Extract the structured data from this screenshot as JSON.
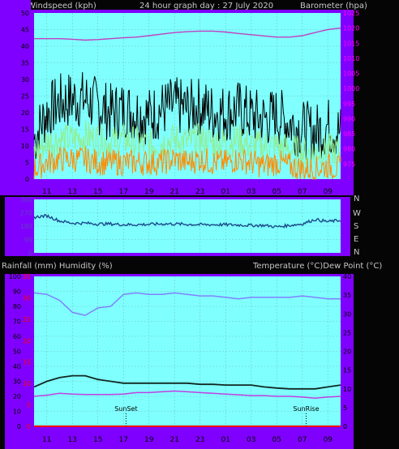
{
  "header": {
    "left_label": "Windspeed (kph)",
    "center_label": "24 hour graph day : 27 July 2020",
    "right_label": "Barometer (hpa)"
  },
  "middle": {
    "compass_labels": [
      "N",
      "W",
      "S",
      "E",
      "N"
    ]
  },
  "lower_header": {
    "left_label": "Rainfall (mm)  Humidity (%)",
    "right_label": "Temperature (°C)Dew Point (°C)"
  },
  "colors": {
    "plot_bg": "#80ffff",
    "axis_bg": "#8000ff",
    "wind_gust": "#000000",
    "wind_avg": "#90ee90",
    "wind_low": "#ff8c00",
    "barometer": "#c040c0",
    "direction": "#1a4a8a",
    "humidity": "#8080ff",
    "temperature": "#102820",
    "dewpoint": "#c040e0",
    "rain": "#ff0000"
  },
  "x_ticks": [
    "11",
    "13",
    "15",
    "17",
    "19",
    "21",
    "23",
    "01",
    "03",
    "05",
    "07",
    "09"
  ],
  "chart_data": [
    {
      "type": "line",
      "title": "24 hour graph day : 27 July 2020",
      "ylabel": "Windspeed (kph)",
      "ylabel_right": "Barometer (hpa)",
      "ylim": [
        0,
        50
      ],
      "ylim_right": [
        970,
        1025
      ],
      "y_ticks": [
        "0",
        "5",
        "10",
        "15",
        "20",
        "25",
        "30",
        "35",
        "40",
        "45",
        "50"
      ],
      "y_ticks_right": [
        "975",
        "980",
        "985",
        "990",
        "995",
        "1000",
        "1005",
        "1010",
        "1015",
        "1020",
        "1025"
      ],
      "x_hours": [
        10,
        11,
        12,
        13,
        14,
        15,
        16,
        17,
        18,
        19,
        20,
        21,
        22,
        23,
        24,
        25,
        26,
        27,
        28,
        29,
        30,
        31,
        32,
        33,
        34
      ],
      "series": [
        {
          "name": "gust",
          "axis": "left",
          "values": [
            12,
            20,
            23,
            24,
            24,
            22,
            20,
            21,
            20,
            19,
            21,
            22,
            21,
            22,
            20,
            20,
            21,
            19,
            18,
            19,
            17,
            15,
            14,
            16,
            14
          ]
        },
        {
          "name": "average",
          "axis": "left",
          "values": [
            8,
            11,
            12,
            12,
            13,
            12,
            11,
            12,
            11,
            10,
            11,
            12,
            11,
            12,
            11,
            11,
            12,
            10,
            10,
            10,
            9,
            8,
            8,
            9,
            8
          ]
        },
        {
          "name": "lull",
          "axis": "left",
          "values": [
            3,
            5,
            6,
            6,
            6,
            5,
            5,
            5,
            5,
            5,
            5,
            6,
            5,
            6,
            5,
            5,
            6,
            5,
            4,
            5,
            4,
            3,
            3,
            4,
            3
          ]
        },
        {
          "name": "barometer",
          "axis": "right",
          "values": [
            1016.5,
            1016.5,
            1016.5,
            1016.3,
            1016,
            1016.2,
            1016.5,
            1016.8,
            1017,
            1017.5,
            1018,
            1018.5,
            1018.8,
            1019,
            1019,
            1018.7,
            1018.2,
            1017.8,
            1017.4,
            1017,
            1017,
            1017.5,
            1018.5,
            1019.5,
            1020
          ]
        }
      ]
    },
    {
      "type": "line",
      "ylim": [
        0,
        360
      ],
      "y_ticks": [
        "0",
        "90",
        "180",
        "270",
        "360"
      ],
      "x_hours": [
        10,
        11,
        12,
        13,
        14,
        15,
        16,
        17,
        18,
        19,
        20,
        21,
        22,
        23,
        24,
        25,
        26,
        27,
        28,
        29,
        30,
        31,
        32,
        33,
        34
      ],
      "series": [
        {
          "name": "direction",
          "values": [
            240,
            250,
            215,
            200,
            200,
            195,
            195,
            190,
            190,
            192,
            195,
            195,
            192,
            190,
            190,
            190,
            188,
            185,
            185,
            175,
            185,
            195,
            225,
            210,
            220
          ]
        }
      ]
    },
    {
      "type": "line",
      "ylabel": "Rainfall (mm)  Humidity (%)",
      "ylabel_right": "Temperature (°C)Dew Point (°C)",
      "ylim": [
        0,
        100
      ],
      "ylim_rain": [
        0,
        35
      ],
      "ylim_right": [
        0,
        40
      ],
      "y_ticks": [
        "0",
        "10",
        "20",
        "30",
        "40",
        "50",
        "60",
        "70",
        "80",
        "90",
        "100"
      ],
      "y_ticks_rain": [
        "0",
        "5",
        "10",
        "15",
        "20",
        "25",
        "30",
        "35"
      ],
      "y_ticks_right": [
        "0",
        "5",
        "10",
        "15",
        "20",
        "25",
        "30",
        "35",
        "40"
      ],
      "x_hours": [
        10,
        11,
        12,
        13,
        14,
        15,
        16,
        17,
        18,
        19,
        20,
        21,
        22,
        23,
        24,
        25,
        26,
        27,
        28,
        29,
        30,
        31,
        32,
        33,
        34
      ],
      "series": [
        {
          "name": "humidity",
          "axis": "left",
          "values": [
            89,
            88,
            84,
            76,
            74,
            79,
            80,
            88,
            89,
            88,
            88,
            89,
            88,
            87,
            87,
            86,
            85,
            86,
            86,
            86,
            86,
            87,
            86,
            85,
            85
          ]
        },
        {
          "name": "temperature",
          "axis": "right",
          "values": [
            10.5,
            12,
            13,
            13.5,
            13.5,
            12.5,
            12,
            11.5,
            11.5,
            11.5,
            11.5,
            11.5,
            11.5,
            11.2,
            11.2,
            11,
            11,
            11,
            10.5,
            10.2,
            10,
            10,
            10,
            10.5,
            11
          ]
        },
        {
          "name": "dewpoint",
          "axis": "right",
          "values": [
            8,
            8.3,
            8.8,
            8.6,
            8.5,
            8.5,
            8.5,
            8.6,
            9,
            9,
            9.2,
            9.4,
            9.2,
            9,
            8.8,
            8.6,
            8.4,
            8.2,
            8.2,
            8,
            8,
            7.8,
            7.5,
            7.8,
            8
          ]
        },
        {
          "name": "rain",
          "axis": "rain",
          "values": [
            0,
            0,
            0,
            0,
            0,
            0,
            0,
            0,
            0,
            0,
            0,
            0,
            0,
            0,
            0,
            0,
            0,
            0,
            0,
            0,
            0,
            0,
            0,
            0,
            0
          ]
        }
      ],
      "annotations": [
        {
          "text": "SunSet",
          "hour": 17.2
        },
        {
          "text": "SunRise",
          "hour": 7.3
        }
      ]
    }
  ]
}
